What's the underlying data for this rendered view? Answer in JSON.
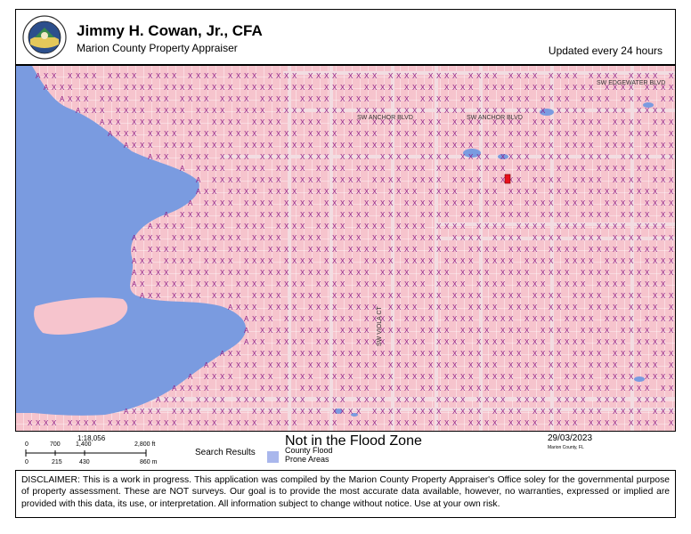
{
  "header": {
    "title": "Jimmy H. Cowan, Jr., CFA",
    "subtitle": "Marion County Property Appraiser",
    "update_note": "Updated every 24 hours",
    "seal_text": "MARION COUNTY PROPERTY APPRAISER"
  },
  "map": {
    "streets": [
      "SW EDGEWATER BLVD",
      "SW ANCHOR BLVD",
      "SW ANCHOR BLVD",
      "SW VIOLA CT"
    ],
    "parcel_codes": {
      "not_flood": "X",
      "flood": "A"
    },
    "colors": {
      "parcel_fill": "#f6c4cd",
      "parcel_line": "#ffffff",
      "water": "#7a9be0",
      "x_code": "#8e1b84",
      "road": "#f2dde2",
      "selected_parcel": "#e8101c"
    }
  },
  "legend": {
    "scale_ratio": "1:18,056",
    "scale_ft_ticks": [
      "0",
      "700",
      "1,400",
      "2,800 ft"
    ],
    "scale_m_ticks": [
      "0",
      "215",
      "430",
      "860 m"
    ],
    "search_results": "Search Results",
    "flood_label": "County Flood Prone Areas",
    "zone_status": "Not in the Flood Zone",
    "print_date": "29/03/2023",
    "print_county": "Marion County, FL"
  },
  "disclaimer": "DISCLAIMER: This is a work in progress. This application was compiled by the Marion County Property Appraiser's Office soley for the governmental purpose of property assessment. These are NOT surveys. Our goal is to provide the most accurate data available, however, no warranties, expressed or implied are provided with this data, its use, or interpretation. All information subject to change without notice. Use at your own risk."
}
